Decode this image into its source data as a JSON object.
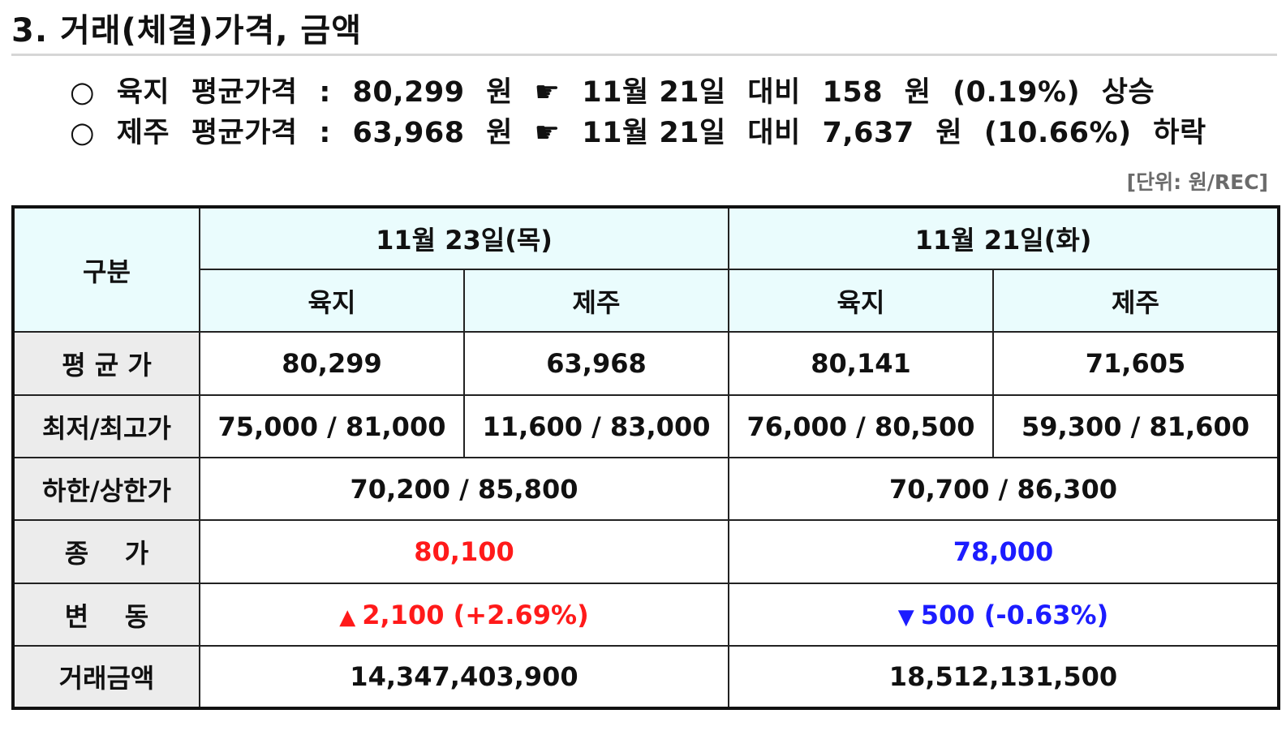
{
  "title": "3. 거래(체결)가격, 금액",
  "summary": [
    {
      "bullet": "○",
      "region": "육지",
      "label": "평균가격",
      "colon": ":",
      "price": "80,299",
      "won": "원",
      "pointer": "☛",
      "date": "11월 21일",
      "compare": "대비",
      "diff": "158",
      "diff_unit": "원",
      "pct": "(0.19%)",
      "direction": "상승"
    },
    {
      "bullet": "○",
      "region": "제주",
      "label": "평균가격",
      "colon": ":",
      "price": "63,968",
      "won": "원",
      "pointer": "☛",
      "date": "11월 21일",
      "compare": "대비",
      "diff": "7,637",
      "diff_unit": "원",
      "pct": "(10.66%)",
      "direction": "하락"
    }
  ],
  "unit": "[단위: 원/REC]",
  "table": {
    "corner": "구분",
    "dates": [
      "11월 23일(목)",
      "11월 21일(화)"
    ],
    "regions": [
      "육지",
      "제주",
      "육지",
      "제주"
    ],
    "rows": {
      "avg": {
        "label": "평 균 가",
        "values": [
          "80,299",
          "63,968",
          "80,141",
          "71,605"
        ]
      },
      "minmax": {
        "label": "최저/최고가",
        "values": [
          "75,000 / 81,000",
          "11,600 / 83,000",
          "76,000 / 80,500",
          "59,300 / 81,600"
        ]
      },
      "limit": {
        "label": "하한/상한가",
        "values": [
          "70,200 / 85,800",
          "70,700 / 86,300"
        ]
      },
      "close": {
        "label": "종    가",
        "values": [
          "80,100",
          "78,000"
        ]
      },
      "change": {
        "label": "변    동",
        "up_symbol": "▲",
        "up_value": "2,100 (+2.69%)",
        "down_symbol": "▼",
        "down_value": "500 (-0.63%)"
      },
      "amount": {
        "label": "거래금액",
        "values": [
          "14,347,403,900",
          "18,512,131,500"
        ]
      }
    },
    "colors": {
      "header_bg": "#eafcfd",
      "row_header_bg": "#ececec",
      "up": "#ff1a1a",
      "down": "#1c1cff"
    }
  }
}
